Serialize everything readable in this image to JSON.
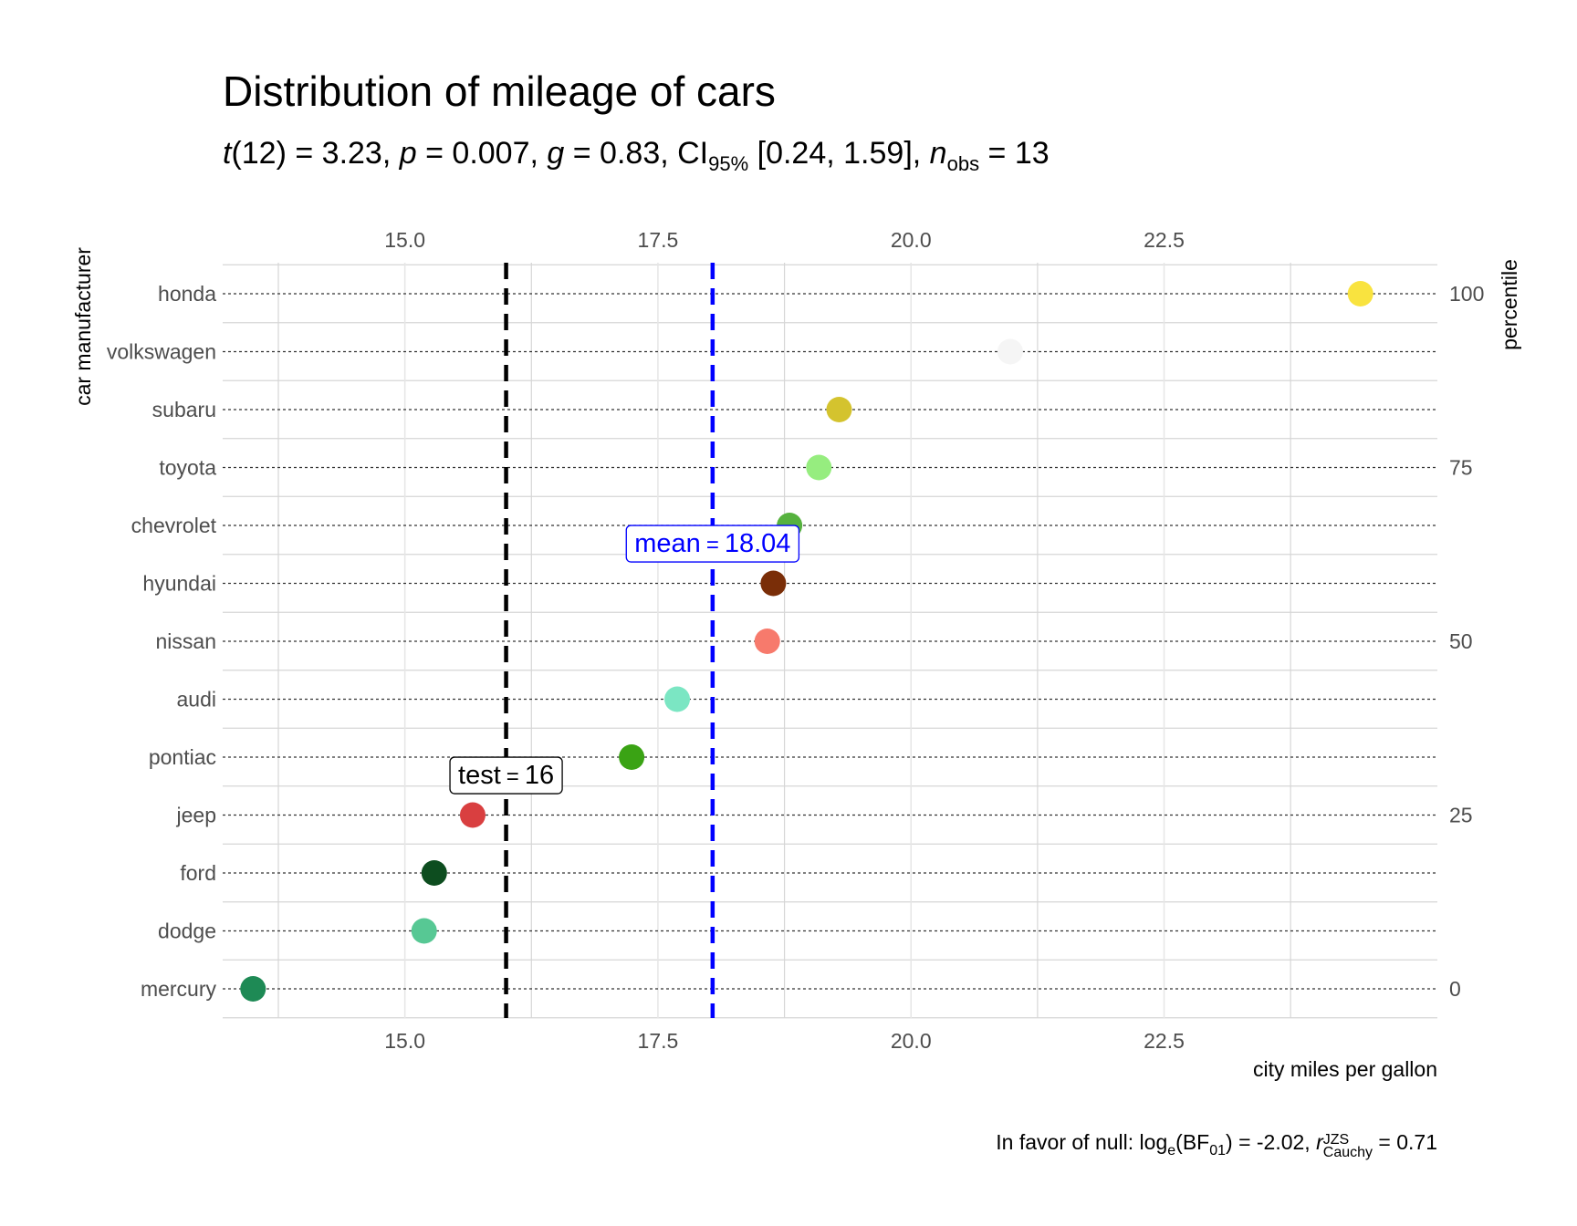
{
  "subtitle_parts": {
    "t_symbol": "t",
    "df": "(12) = 3.23, ",
    "p_symbol": "p",
    "p_value": " = 0.007, ",
    "g_symbol": "g",
    "g_value": " = 0.83, CI",
    "ci_sub": "95%",
    "ci_value": " [0.24, 1.59], ",
    "n_symbol": "n",
    "n_sub": "obs",
    "n_value": " = 13"
  },
  "caption_parts": {
    "lead": "In favor of null: log",
    "log_sub": "e",
    "bf": "(BF",
    "bf_sub": "01",
    "bf_value": ") = -2.02, ",
    "r_symbol": "r",
    "r_sup": "JZS",
    "r_sub": "Cauchy",
    "r_value": " = 0.71"
  },
  "chart_data": {
    "type": "scatter",
    "title": "Distribution of mileage of cars",
    "xlabel": "city miles per gallon",
    "ylabel": "car manufacturer",
    "y2label": "percentile",
    "xlim": [
      13.2,
      25.2
    ],
    "x_ticks": [
      15.0,
      17.5,
      20.0,
      22.5
    ],
    "x_tick_labels": [
      "15.0",
      "17.5",
      "20.0",
      "22.5"
    ],
    "percentile_ticks": [
      100,
      75,
      50,
      25,
      0
    ],
    "grid": true,
    "categories": [
      "honda",
      "volkswagen",
      "subaru",
      "toyota",
      "chevrolet",
      "hyundai",
      "nissan",
      "audi",
      "pontiac",
      "jeep",
      "ford",
      "dodge",
      "mercury"
    ],
    "values": [
      24.44,
      20.98,
      19.29,
      19.09,
      18.8,
      18.64,
      18.58,
      17.69,
      17.24,
      15.67,
      15.29,
      15.19,
      13.5
    ],
    "colors": [
      "#F9E33F",
      "#F5F5F5",
      "#D4C32E",
      "#96ED7F",
      "#56B23E",
      "#7A2E08",
      "#F77A6C",
      "#7BE6C3",
      "#3AA314",
      "#D93F40",
      "#0D4D1F",
      "#57C894",
      "#1E8A55"
    ],
    "reference_lines": [
      {
        "label": "test",
        "value": 16,
        "display": "16",
        "color": "#000000"
      },
      {
        "label": "mean",
        "value": 18.04,
        "display": "18.04",
        "color": "#0000FF"
      }
    ]
  }
}
